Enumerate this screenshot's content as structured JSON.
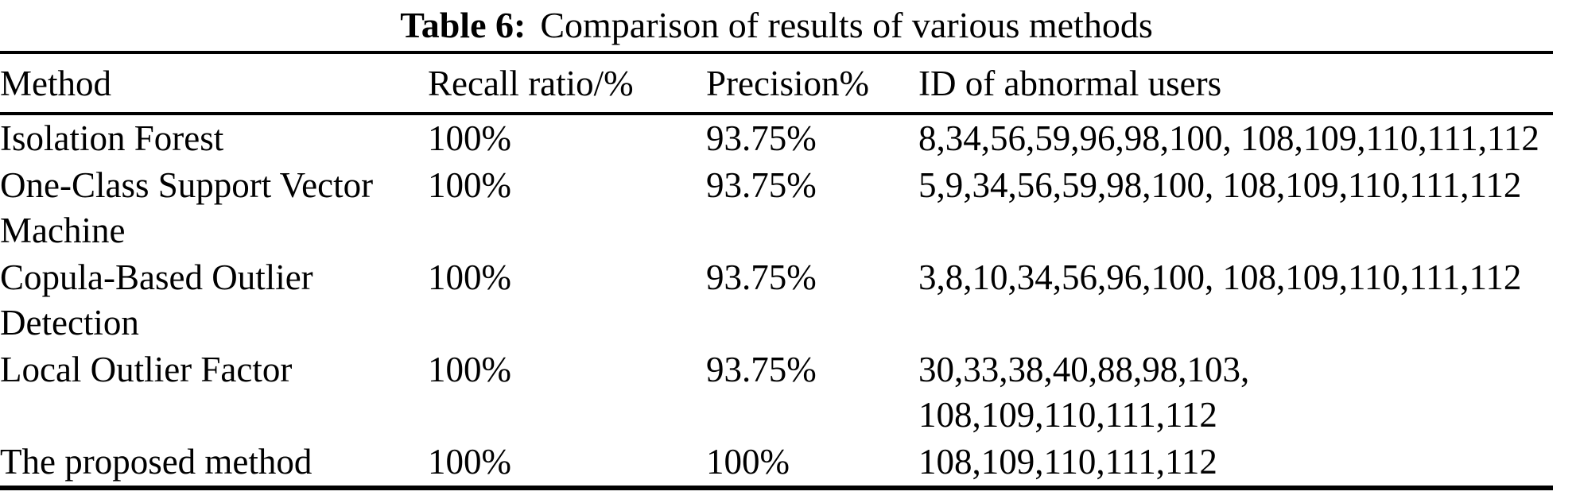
{
  "page": {
    "background_color": "#ffffff",
    "text_color": "#000000"
  },
  "caption": {
    "label": "Table 6:",
    "text": "Comparison of results of various methods"
  },
  "table": {
    "columns": [
      {
        "key": "method",
        "label": "Method"
      },
      {
        "key": "recall",
        "label": "Recall ratio/%"
      },
      {
        "key": "precision",
        "label": "Precision%"
      },
      {
        "key": "ids",
        "label": "ID of abnormal users"
      }
    ],
    "rows": [
      {
        "method": "Isolation Forest",
        "recall": "100%",
        "precision": "93.75%",
        "ids": "8,34,56,59,96,98,100, 108,109,110,111,112"
      },
      {
        "method": "One-Class Support Vector Machine",
        "recall": "100%",
        "precision": "93.75%",
        "ids": "5,9,34,56,59,98,100, 108,109,110,111,112"
      },
      {
        "method": "Copula-Based Outlier Detection",
        "recall": "100%",
        "precision": "93.75%",
        "ids": "3,8,10,34,56,96,100, 108,109,110,111,112"
      },
      {
        "method": "Local Outlier Factor",
        "recall": "100%",
        "precision": "93.75%",
        "ids": "30,33,38,40,88,98,103,\n108,109,110,111,112"
      },
      {
        "method": "The proposed method",
        "recall": "100%",
        "precision": "100%",
        "ids": "108,109,110,111,112"
      }
    ]
  }
}
